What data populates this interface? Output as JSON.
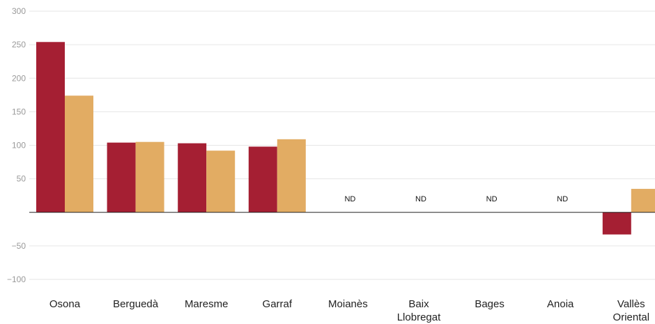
{
  "chart_data": {
    "type": "bar",
    "title": "",
    "xlabel": "",
    "ylabel": "",
    "ylim": [
      -100,
      300
    ],
    "yticks": [
      300,
      250,
      200,
      150,
      100,
      50,
      0,
      -50,
      -100
    ],
    "ytick_labels": [
      "300",
      "250",
      "200",
      "150",
      "100",
      "50",
      "",
      "−50",
      "−100"
    ],
    "grid": true,
    "categories": [
      [
        "Osona"
      ],
      [
        "Berguedà"
      ],
      [
        "Maresme"
      ],
      [
        "Garraf"
      ],
      [
        "Moianès"
      ],
      [
        "Baix",
        "Llobregat"
      ],
      [
        "Bages"
      ],
      [
        "Anoia"
      ],
      [
        "Vallès",
        "Oriental"
      ]
    ],
    "series": [
      {
        "color": "#a51f33",
        "values": [
          254,
          104,
          103,
          98,
          null,
          null,
          null,
          null,
          -33
        ]
      },
      {
        "color": "#e2ac63",
        "values": [
          174,
          105,
          92,
          109,
          null,
          null,
          null,
          null,
          35
        ]
      }
    ],
    "missing_label": "ND"
  }
}
